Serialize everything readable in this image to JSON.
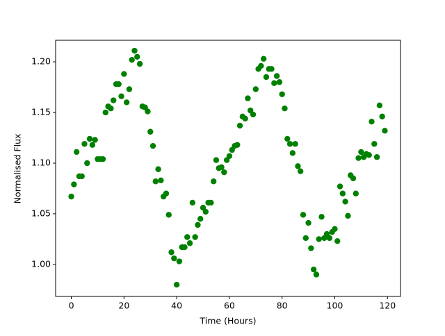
{
  "chart_data": {
    "type": "scatter",
    "xlabel": "Time (Hours)",
    "ylabel": "Normalised Flux",
    "color": "#008000",
    "x": [
      0,
      1,
      2,
      3,
      4,
      5,
      6,
      7,
      8,
      9,
      10,
      11,
      12,
      13,
      14,
      15,
      16,
      17,
      18,
      19,
      20,
      21,
      22,
      23,
      24,
      25,
      26,
      27,
      28,
      29,
      30,
      31,
      32,
      33,
      34,
      35,
      36,
      37,
      38,
      39,
      40,
      41,
      42,
      43,
      44,
      45,
      46,
      47,
      48,
      49,
      50,
      51,
      52,
      53,
      54,
      55,
      56,
      57,
      58,
      59,
      60,
      61,
      62,
      63,
      64,
      65,
      66,
      67,
      68,
      69,
      70,
      71,
      72,
      73,
      74,
      75,
      76,
      77,
      78,
      79,
      80,
      81,
      82,
      83,
      84,
      85,
      86,
      87,
      88,
      89,
      90,
      91,
      92,
      93,
      94,
      95,
      96,
      97,
      98,
      99,
      100,
      101,
      102,
      103,
      104,
      105,
      106,
      107,
      108,
      109,
      110,
      111,
      112,
      113,
      114,
      115,
      116,
      117,
      118,
      119
    ],
    "values": [
      1.067,
      1.079,
      1.111,
      1.087,
      1.087,
      1.119,
      1.1,
      1.124,
      1.118,
      1.123,
      1.104,
      1.104,
      1.104,
      1.15,
      1.156,
      1.154,
      1.162,
      1.178,
      1.178,
      1.166,
      1.188,
      1.16,
      1.173,
      1.202,
      1.211,
      1.205,
      1.198,
      1.156,
      1.155,
      1.151,
      1.131,
      1.117,
      1.082,
      1.094,
      1.083,
      1.067,
      1.07,
      1.049,
      1.012,
      1.006,
      0.98,
      1.003,
      1.017,
      1.017,
      1.027,
      1.021,
      1.061,
      1.027,
      1.039,
      1.045,
      1.056,
      1.052,
      1.061,
      1.061,
      1.082,
      1.103,
      1.095,
      1.096,
      1.091,
      1.103,
      1.107,
      1.113,
      1.117,
      1.118,
      1.137,
      1.146,
      1.144,
      1.164,
      1.152,
      1.148,
      1.173,
      1.193,
      1.196,
      1.203,
      1.185,
      1.193,
      1.193,
      1.179,
      1.186,
      1.18,
      1.168,
      1.154,
      1.124,
      1.119,
      1.11,
      1.119,
      1.097,
      1.092,
      1.049,
      1.026,
      1.041,
      1.016,
      0.995,
      0.99,
      1.025,
      1.047,
      1.026,
      1.03,
      1.026,
      1.032,
      1.035,
      1.023,
      1.077,
      1.07,
      1.062,
      1.048,
      1.088,
      1.085,
      1.07,
      1.105,
      1.111,
      1.106,
      1.109,
      1.108,
      1.141,
      1.119,
      1.106,
      1.157,
      1.146,
      1.132
    ],
    "xlim": [
      -5.95,
      124.95
    ],
    "ylim": [
      0.9684,
      1.2213
    ],
    "xticks": [
      0,
      20,
      40,
      60,
      80,
      100,
      120
    ],
    "yticks": [
      {
        "value": 1.0,
        "label": "1.00"
      },
      1.05,
      {
        "value": 1.1,
        "label": "1.10"
      },
      1.15,
      {
        "value": 1.2,
        "label": "1.20"
      }
    ]
  }
}
